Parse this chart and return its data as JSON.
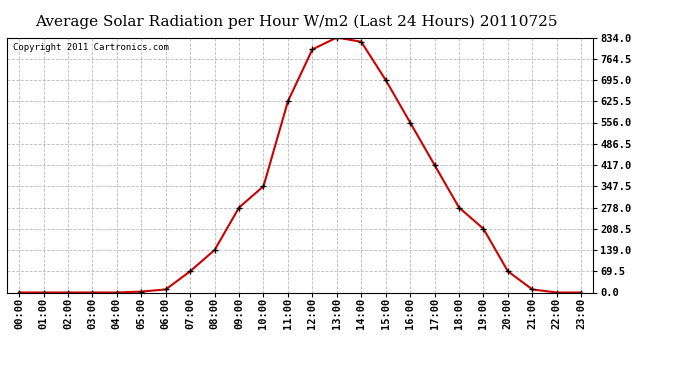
{
  "title": "Average Solar Radiation per Hour W/m2 (Last 24 Hours) 20110725",
  "copyright": "Copyright 2011 Cartronics.com",
  "hours": [
    "00:00",
    "01:00",
    "02:00",
    "03:00",
    "04:00",
    "05:00",
    "06:00",
    "07:00",
    "08:00",
    "09:00",
    "10:00",
    "11:00",
    "12:00",
    "13:00",
    "14:00",
    "15:00",
    "16:00",
    "17:00",
    "18:00",
    "19:00",
    "20:00",
    "21:00",
    "22:00",
    "23:00"
  ],
  "values": [
    0.0,
    0.0,
    0.0,
    0.0,
    0.0,
    3.0,
    10.0,
    69.5,
    139.0,
    278.0,
    347.5,
    625.5,
    795.0,
    834.0,
    820.0,
    695.0,
    556.0,
    417.0,
    278.0,
    208.5,
    69.5,
    10.0,
    0.0,
    0.0
  ],
  "line_color": "#cc0000",
  "marker": "+",
  "marker_color": "#000000",
  "marker_size": 5,
  "marker_linewidth": 1.0,
  "bg_color": "#ffffff",
  "grid_color": "#bbbbbb",
  "yticks": [
    0.0,
    69.5,
    139.0,
    208.5,
    278.0,
    347.5,
    417.0,
    486.5,
    556.0,
    625.5,
    695.0,
    764.5,
    834.0
  ],
  "ymin": 0.0,
  "ymax": 834.0,
  "title_fontsize": 11,
  "copyright_fontsize": 6.5,
  "tick_fontsize": 7.5,
  "ytick_fontsize": 7.5,
  "line_width": 1.5
}
